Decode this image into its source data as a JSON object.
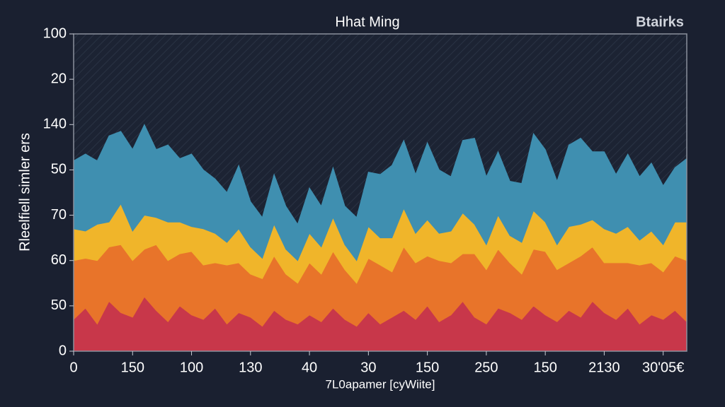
{
  "chart_data": {
    "type": "stacked-area",
    "title": "Hhat Ming",
    "legend_label": "Btairks",
    "ylabel": "Rleelfiell simler ers",
    "xlabel": "7L0apamer [cyWiite]",
    "x": [
      0,
      0.2,
      0.4,
      0.6,
      0.8,
      1,
      1.2,
      1.4,
      1.6,
      1.8,
      2,
      2.2,
      2.4,
      2.6,
      2.8,
      3,
      3.2,
      3.4,
      3.6,
      3.8,
      4,
      4.2,
      4.4,
      4.6,
      4.8,
      5,
      5.2,
      5.4,
      5.6,
      5.8,
      6,
      6.2,
      6.4,
      6.6,
      6.8,
      7,
      7.2,
      7.4,
      7.6,
      7.8,
      8,
      8.2,
      8.4,
      8.6,
      8.8,
      9,
      9.2,
      9.4,
      9.6,
      9.8,
      10,
      10.2,
      10.4
    ],
    "series": [
      {
        "color": "#c8374a",
        "values": [
          70,
          95,
          60,
          110,
          85,
          75,
          120,
          90,
          65,
          100,
          80,
          70,
          95,
          60,
          85,
          75,
          55,
          90,
          70,
          60,
          80,
          65,
          95,
          70,
          55,
          85,
          60,
          75,
          90,
          70,
          100,
          65,
          80,
          110,
          75,
          60,
          95,
          85,
          70,
          100,
          80,
          65,
          90,
          75,
          110,
          85,
          70,
          95,
          60,
          80,
          70,
          90,
          65
        ]
      },
      {
        "color": "#e8742a",
        "values": [
          130,
          110,
          140,
          120,
          150,
          125,
          105,
          145,
          135,
          115,
          140,
          120,
          100,
          130,
          110,
          95,
          105,
          120,
          100,
          90,
          115,
          105,
          125,
          110,
          95,
          120,
          130,
          100,
          140,
          125,
          110,
          135,
          115,
          105,
          140,
          120,
          130,
          110,
          100,
          125,
          140,
          115,
          105,
          135,
          120,
          110,
          125,
          100,
          130,
          115,
          105,
          120,
          135
        ]
      },
      {
        "color": "#f0b52a",
        "values": [
          70,
          60,
          80,
          55,
          90,
          65,
          75,
          60,
          85,
          70,
          55,
          80,
          65,
          50,
          75,
          60,
          45,
          70,
          55,
          50,
          65,
          60,
          75,
          55,
          50,
          70,
          60,
          75,
          85,
          65,
          80,
          60,
          70,
          90,
          65,
          55,
          75,
          60,
          70,
          85,
          65,
          55,
          80,
          70,
          60,
          75,
          65,
          80,
          55,
          70,
          60,
          75,
          85
        ]
      },
      {
        "color": "#3f8fb0",
        "values": [
          150,
          170,
          140,
          190,
          160,
          180,
          200,
          150,
          170,
          140,
          160,
          130,
          120,
          110,
          140,
          100,
          90,
          110,
          95,
          80,
          100,
          90,
          110,
          85,
          95,
          120,
          140,
          160,
          150,
          130,
          170,
          140,
          120,
          160,
          190,
          150,
          140,
          120,
          130,
          170,
          160,
          140,
          180,
          190,
          150,
          170,
          130,
          160,
          140,
          150,
          130,
          120,
          140
        ]
      }
    ],
    "xlim": [
      0,
      10.4
    ],
    "xticks": [
      0,
      {
        "value": 1,
        "label": "150"
      },
      {
        "value": 2,
        "label": "100"
      },
      {
        "value": 3,
        "label": "130"
      },
      {
        "value": 4,
        "label": "40"
      },
      {
        "value": 5,
        "label": "30"
      },
      {
        "value": 6,
        "label": "150"
      },
      {
        "value": 7,
        "label": "250"
      },
      {
        "value": 8,
        "label": "150"
      },
      {
        "value": 9,
        "label": "2130"
      },
      {
        "value": 10,
        "label": "30'05€"
      }
    ],
    "ylim": [
      0,
      700
    ],
    "yticks": [
      0,
      {
        "value": 100,
        "label": "50"
      },
      {
        "value": 200,
        "label": "60"
      },
      {
        "value": 300,
        "label": "70"
      },
      {
        "value": 400,
        "label": "50"
      },
      {
        "value": 500,
        "label": "140"
      },
      {
        "value": 600,
        "label": "20"
      },
      {
        "value": 700,
        "label": "100"
      }
    ]
  }
}
